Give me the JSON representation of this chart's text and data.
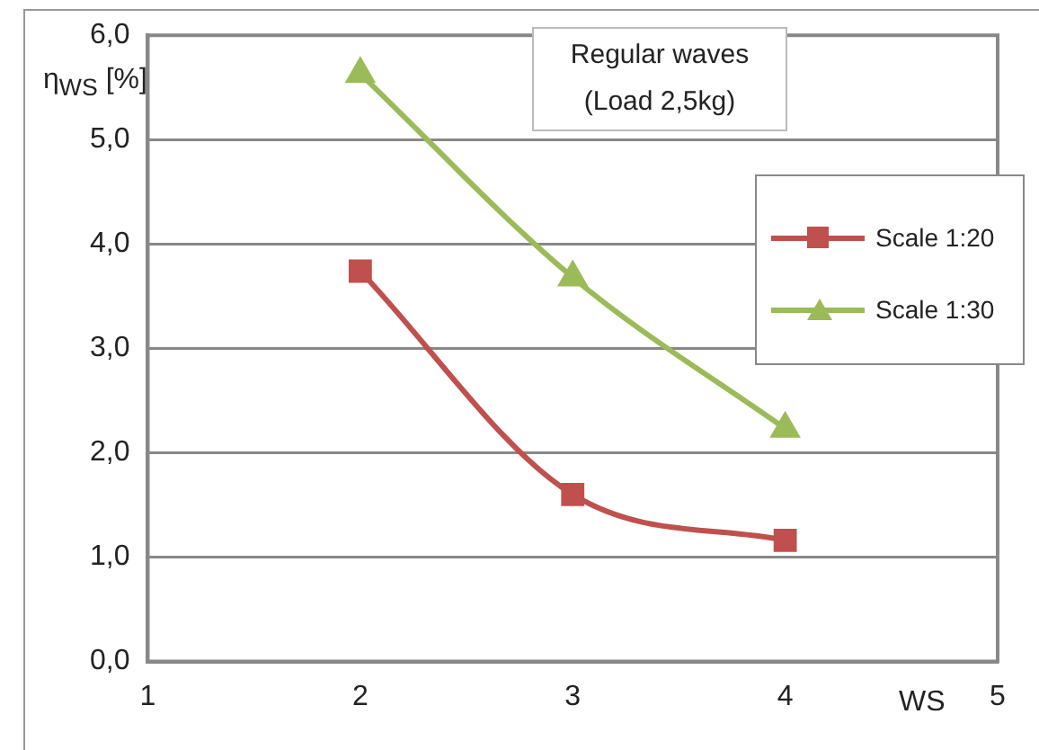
{
  "chart_data": {
    "type": "line",
    "title": "Regular waves (Load 2,5kg)",
    "xlabel": "WS",
    "ylabel": "η$_{WS}$ [%]",
    "x": [
      2,
      3,
      4
    ],
    "series": [
      {
        "name": "Scale 1:20",
        "color": "#c0504d",
        "marker": "square",
        "values": [
          3.74,
          1.6,
          1.16
        ]
      },
      {
        "name": "Scale 1:30",
        "color": "#9bbb59",
        "marker": "triangle",
        "values": [
          5.63,
          3.68,
          2.23
        ]
      }
    ],
    "xlim": [
      1,
      5
    ],
    "xticks": [
      1,
      2,
      3,
      4,
      5
    ],
    "ylim": [
      0,
      6
    ],
    "yticks": [
      {
        "value": 0,
        "label": "0,0"
      },
      {
        "value": 1,
        "label": "1,0"
      },
      {
        "value": 2,
        "label": "2,0"
      },
      {
        "value": 3,
        "label": "3,0"
      },
      {
        "value": 4,
        "label": "4,0"
      },
      {
        "value": 5,
        "label": "5,0"
      },
      {
        "value": 6,
        "label": "6,0"
      }
    ],
    "grid": "y",
    "legend": "right"
  }
}
